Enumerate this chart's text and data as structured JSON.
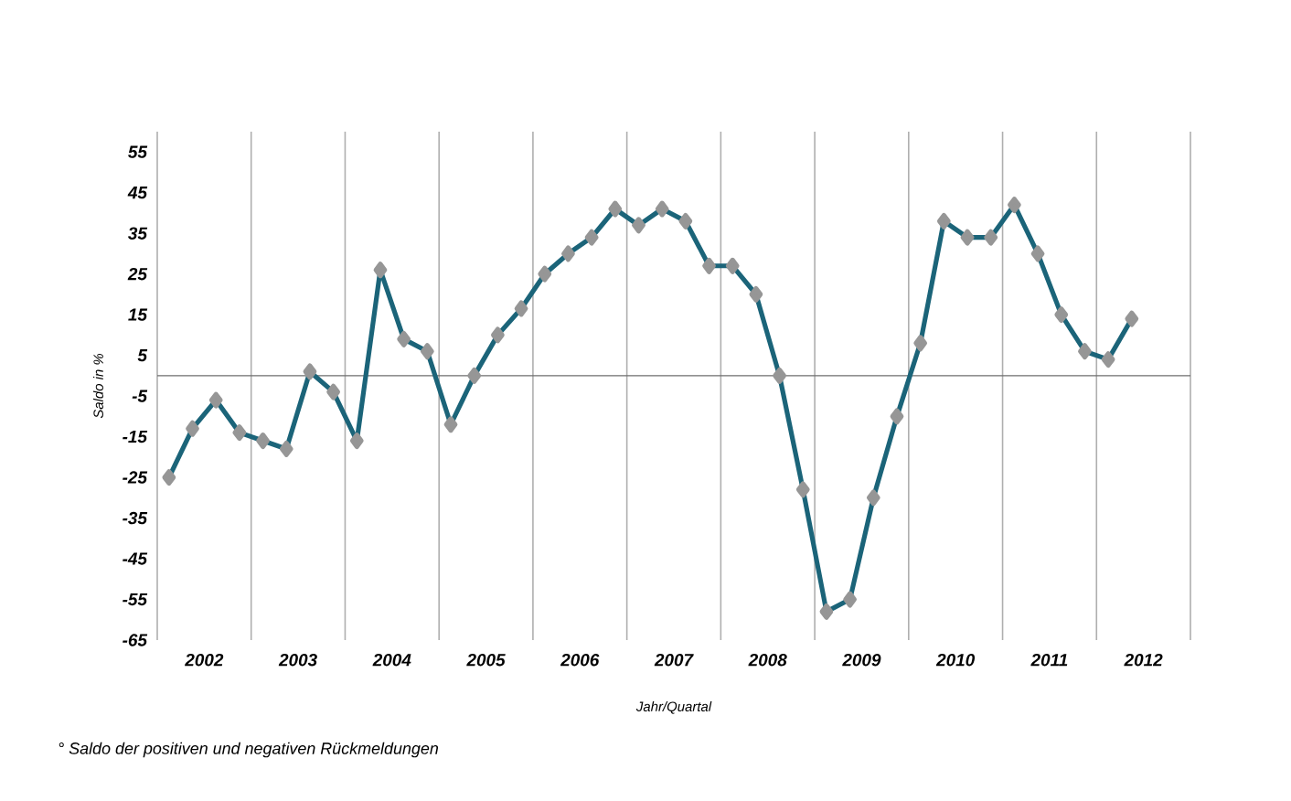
{
  "chart_data": {
    "type": "line",
    "xlabel": "Jahr/Quartal",
    "ylabel": "Saldo in %",
    "annotations": [
      "° Saldo der positiven und negativen Rückmeldungen"
    ],
    "x": [
      2002.125,
      2002.375,
      2002.625,
      2002.875,
      2003.125,
      2003.375,
      2003.625,
      2003.875,
      2004.125,
      2004.375,
      2004.625,
      2004.875,
      2005.125,
      2005.375,
      2005.625,
      2005.875,
      2006.125,
      2006.375,
      2006.625,
      2006.875,
      2007.125,
      2007.375,
      2007.625,
      2007.875,
      2008.125,
      2008.375,
      2008.625,
      2008.875,
      2009.125,
      2009.375,
      2009.625,
      2009.875,
      2010.125,
      2010.375,
      2010.625,
      2010.875,
      2011.125,
      2011.375,
      2011.625,
      2011.875,
      2012.125,
      2012.375
    ],
    "series": [
      {
        "color": "#1b6479",
        "values": [
          -25,
          -13,
          -6,
          -14,
          -16,
          -18,
          1,
          -4,
          -16,
          26,
          9,
          6,
          -12,
          0,
          10,
          16.5,
          25,
          30,
          34,
          41,
          37,
          41,
          38,
          27,
          27,
          20,
          0,
          -28,
          -58,
          -55,
          -30,
          -10,
          8,
          38,
          34,
          34,
          42,
          30,
          15,
          6,
          4,
          14
        ]
      }
    ],
    "xlim": [
      2002,
      2013
    ],
    "xticks": [
      {
        "value": 2002,
        "label": null
      },
      {
        "value": 2002.5,
        "label": "2002"
      },
      {
        "value": 2003,
        "label": null
      },
      {
        "value": 2003.5,
        "label": "2003"
      },
      {
        "value": 2004,
        "label": null
      },
      {
        "value": 2004.5,
        "label": "2004"
      },
      {
        "value": 2005,
        "label": null
      },
      {
        "value": 2005.5,
        "label": "2005"
      },
      {
        "value": 2006,
        "label": null
      },
      {
        "value": 2006.5,
        "label": "2006"
      },
      {
        "value": 2007,
        "label": null
      },
      {
        "value": 2007.5,
        "label": "2007"
      },
      {
        "value": 2008,
        "label": null
      },
      {
        "value": 2008.5,
        "label": "2008"
      },
      {
        "value": 2009,
        "label": null
      },
      {
        "value": 2009.5,
        "label": "2009"
      },
      {
        "value": 2010,
        "label": null
      },
      {
        "value": 2010.5,
        "label": "2010"
      },
      {
        "value": 2011,
        "label": null
      },
      {
        "value": 2011.5,
        "label": "2011"
      },
      {
        "value": 2012,
        "label": null
      },
      {
        "value": 2012.5,
        "label": "2012"
      },
      {
        "value": 2013,
        "label": null
      }
    ],
    "ylim": [
      -65,
      60
    ],
    "yticks": [
      -65,
      -55,
      -45,
      -35,
      -25,
      -15,
      -5,
      5,
      15,
      25,
      35,
      45,
      55
    ],
    "ref_lines": [
      {
        "axis": "y",
        "value": 0
      }
    ],
    "grid": "x",
    "marker": "diamond",
    "line_style": "solid"
  }
}
